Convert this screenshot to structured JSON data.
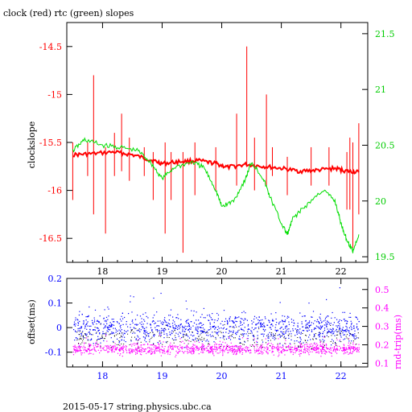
{
  "chart_data": [
    {
      "type": "line",
      "title": "clock (red) rtc (green) slopes",
      "xlabel": "",
      "ylabel": "clockslope",
      "ylabel_right": "",
      "xlim": [
        17.4,
        22.45
      ],
      "ylim": [
        -16.75,
        -14.25
      ],
      "ylim_right": [
        19.45,
        21.6
      ],
      "x_ticks": [
        "18",
        "19",
        "20",
        "21",
        "22"
      ],
      "y_ticks": [
        "-14.5",
        "-15",
        "-15.5",
        "-16",
        "-16.5"
      ],
      "y_ticks_right": [
        "21.5",
        "21",
        "20.5",
        "20",
        "19.5"
      ],
      "grid": false,
      "colors": {
        "red": "#ff0000",
        "green": "#00dd00",
        "axis_left": "#ff0000",
        "axis_right": "#00cc00"
      },
      "series": [
        {
          "name": "clock",
          "axis": "left",
          "color": "#ff0000",
          "x": [
            17.5,
            17.8,
            18.2,
            18.5,
            18.8,
            19.0,
            19.3,
            19.6,
            19.9,
            20.1,
            20.4,
            20.7,
            21.0,
            21.3,
            21.6,
            21.9,
            22.1,
            22.3
          ],
          "y": [
            -15.63,
            -15.62,
            -15.6,
            -15.63,
            -15.68,
            -15.72,
            -15.7,
            -15.69,
            -15.72,
            -15.76,
            -15.73,
            -15.75,
            -15.77,
            -15.8,
            -15.79,
            -15.77,
            -15.8,
            -15.81
          ]
        },
        {
          "name": "rtc",
          "axis": "right",
          "color": "#00dd00",
          "x": [
            17.5,
            17.7,
            18.0,
            18.3,
            18.6,
            18.8,
            19.0,
            19.2,
            19.5,
            19.7,
            19.9,
            20.0,
            20.2,
            20.4,
            20.5,
            20.7,
            20.8,
            21.0,
            21.1,
            21.2,
            21.4,
            21.7,
            21.9,
            22.0,
            22.1,
            22.2,
            22.3
          ],
          "y": [
            20.45,
            20.55,
            20.5,
            20.48,
            20.45,
            20.35,
            20.2,
            20.3,
            20.35,
            20.3,
            20.1,
            19.95,
            20.0,
            20.2,
            20.35,
            20.2,
            20.05,
            19.8,
            19.7,
            19.85,
            19.95,
            20.1,
            20.0,
            19.8,
            19.65,
            19.55,
            19.7
          ]
        }
      ],
      "spikes": [
        {
          "x": 17.5,
          "y": [
            -16.1,
            -15.5
          ]
        },
        {
          "x": 17.75,
          "y": [
            -15.85,
            -15.5
          ]
        },
        {
          "x": 17.85,
          "y": [
            -16.25,
            -14.8
          ]
        },
        {
          "x": 18.05,
          "y": [
            -16.45,
            -15.55
          ]
        },
        {
          "x": 18.2,
          "y": [
            -15.85,
            -15.4
          ]
        },
        {
          "x": 18.32,
          "y": [
            -15.8,
            -15.2
          ]
        },
        {
          "x": 18.45,
          "y": [
            -15.9,
            -15.45
          ]
        },
        {
          "x": 18.7,
          "y": [
            -15.85,
            -15.55
          ]
        },
        {
          "x": 18.85,
          "y": [
            -16.1,
            -15.6
          ]
        },
        {
          "x": 19.05,
          "y": [
            -16.45,
            -15.5
          ]
        },
        {
          "x": 19.15,
          "y": [
            -16.1,
            -15.6
          ]
        },
        {
          "x": 19.35,
          "y": [
            -16.65,
            -15.6
          ]
        },
        {
          "x": 19.55,
          "y": [
            -16.05,
            -15.5
          ]
        },
        {
          "x": 19.9,
          "y": [
            -16.0,
            -15.55
          ]
        },
        {
          "x": 20.25,
          "y": [
            -15.95,
            -15.2
          ]
        },
        {
          "x": 20.42,
          "y": [
            -15.75,
            -14.5
          ]
        },
        {
          "x": 20.55,
          "y": [
            -16.0,
            -15.45
          ]
        },
        {
          "x": 20.75,
          "y": [
            -15.95,
            -15.0
          ]
        },
        {
          "x": 20.85,
          "y": [
            -15.85,
            -15.55
          ]
        },
        {
          "x": 21.1,
          "y": [
            -16.05,
            -15.65
          ]
        },
        {
          "x": 21.5,
          "y": [
            -15.95,
            -15.55
          ]
        },
        {
          "x": 21.8,
          "y": [
            -15.95,
            -15.55
          ]
        },
        {
          "x": 22.1,
          "y": [
            -16.2,
            -15.6
          ]
        },
        {
          "x": 22.15,
          "y": [
            -16.2,
            -15.45
          ]
        },
        {
          "x": 22.2,
          "y": [
            -16.6,
            -15.5
          ]
        },
        {
          "x": 22.3,
          "y": [
            -16.25,
            -15.3
          ]
        }
      ]
    },
    {
      "type": "scatter",
      "title": "",
      "xlabel": "",
      "ylabel": "offset(ms)",
      "ylabel_right": "rnd-trip(ms)",
      "xlim": [
        17.4,
        22.45
      ],
      "ylim": [
        -0.16,
        0.2
      ],
      "ylim_right": [
        0.08,
        0.56
      ],
      "x_ticks": [
        "18",
        "19",
        "20",
        "21",
        "22"
      ],
      "y_ticks": [
        "0.2",
        "0.1",
        "0",
        "-0.1"
      ],
      "y_ticks_right": [
        "0.5",
        "0.4",
        "0.3",
        "0.2",
        "0.1"
      ],
      "grid": false,
      "colors": {
        "blue": "#0000ff",
        "magenta": "#ff00ff",
        "black": "#000000"
      },
      "series": [
        {
          "name": "offset",
          "axis": "left",
          "color": "#0000ff",
          "x_range": [
            17.5,
            22.3
          ],
          "y_center": 0.0,
          "y_spread": 0.03
        },
        {
          "name": "rnd-trip",
          "axis": "right",
          "color": "#ff00ff",
          "x_range": [
            17.5,
            22.3
          ],
          "y_center": 0.18,
          "y_spread": 0.015
        }
      ]
    }
  ],
  "footer": "2015-05-17 string.physics.ubc.ca"
}
